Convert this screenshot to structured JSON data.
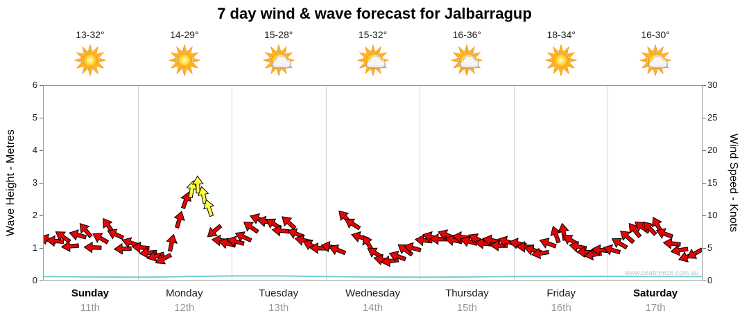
{
  "watermark": "www.seabreeze.com.au",
  "colors": {
    "arrow_red": "#e60505",
    "arrow_yellow": "#ffff45",
    "arrow_outline": "#000000",
    "wave_line": "#6fd0d0",
    "grid": "#d2d2d2",
    "axis_border": "#9a9a9a",
    "date_gray": "#979797"
  },
  "days": [
    {
      "name": "Sunday",
      "date": "11th",
      "temp": "13-32°",
      "icon": "sunny",
      "bold": true
    },
    {
      "name": "Monday",
      "date": "12th",
      "temp": "14-29°",
      "icon": "sunny",
      "bold": false
    },
    {
      "name": "Tuesday",
      "date": "13th",
      "temp": "15-28°",
      "icon": "partly-cloudy",
      "bold": false
    },
    {
      "name": "Wednesday",
      "date": "14th",
      "temp": "15-32°",
      "icon": "partly-cloudy",
      "bold": false
    },
    {
      "name": "Thursday",
      "date": "15th",
      "temp": "16-36°",
      "icon": "partly-cloudy",
      "bold": false
    },
    {
      "name": "Friday",
      "date": "16th",
      "temp": "18-34°",
      "icon": "sunny",
      "bold": false
    },
    {
      "name": "Saturday",
      "date": "17th",
      "temp": "16-30°",
      "icon": "partly-cloudy",
      "bold": true
    }
  ],
  "chart_data": {
    "type": "scatter",
    "title": "7 day wind & wave forecast for Jalbarragup",
    "x_axis": {
      "categories": [
        "Sunday 11th",
        "Monday 12th",
        "Tuesday 13th",
        "Wednesday 14th",
        "Thursday 15th",
        "Friday 16th",
        "Saturday 17th"
      ],
      "range_days": [
        0,
        7
      ],
      "grid": "vertical day separators"
    },
    "y_left": {
      "label": "Wave Height - Metres",
      "range": [
        0,
        6
      ],
      "ticks": [
        0,
        1,
        2,
        3,
        4,
        5,
        6
      ]
    },
    "y_right": {
      "label": "Wind Speed - Knots",
      "range": [
        0,
        30
      ],
      "ticks": [
        0,
        5,
        10,
        15,
        20,
        25,
        30
      ]
    },
    "legend": "none",
    "series": [
      {
        "name": "Wind speed & direction arrows",
        "type": "wind-arrows",
        "units": "knots (right axis)",
        "points_format": [
          "day_x_0_to_7",
          "knots",
          "direction_deg_cw_from_east",
          "color r=red y=yellow"
        ],
        "points": [
          [
            0.05,
            6.2,
            200,
            "r"
          ],
          [
            0.13,
            6.0,
            185,
            "r"
          ],
          [
            0.21,
            6.6,
            215,
            "r"
          ],
          [
            0.29,
            5.2,
            175,
            "r"
          ],
          [
            0.37,
            6.9,
            195,
            "r"
          ],
          [
            0.45,
            7.6,
            230,
            "r"
          ],
          [
            0.53,
            5.0,
            182,
            "r"
          ],
          [
            0.61,
            6.4,
            210,
            "r"
          ],
          [
            0.69,
            8.3,
            235,
            "r"
          ],
          [
            0.77,
            7.0,
            205,
            "r"
          ],
          [
            0.85,
            4.8,
            178,
            "r"
          ],
          [
            0.93,
            5.7,
            198,
            "r"
          ],
          [
            1.04,
            5.0,
            185,
            "r"
          ],
          [
            1.12,
            4.2,
            175,
            "r"
          ],
          [
            1.2,
            3.7,
            165,
            "r"
          ],
          [
            1.28,
            3.3,
            152,
            "r"
          ],
          [
            1.36,
            5.6,
            282,
            "r"
          ],
          [
            1.44,
            9.2,
            286,
            "r"
          ],
          [
            1.51,
            12.2,
            290,
            "r"
          ],
          [
            1.575,
            13.9,
            280,
            "y"
          ],
          [
            1.64,
            14.6,
            268,
            "y"
          ],
          [
            1.7,
            13.0,
            258,
            "y"
          ],
          [
            1.76,
            11.0,
            252,
            "y"
          ],
          [
            1.82,
            7.6,
            140,
            "r"
          ],
          [
            1.89,
            6.1,
            185,
            "r"
          ],
          [
            1.96,
            5.6,
            195,
            "r"
          ],
          [
            2.05,
            5.9,
            195,
            "r"
          ],
          [
            2.13,
            6.6,
            205,
            "r"
          ],
          [
            2.21,
            8.1,
            215,
            "r"
          ],
          [
            2.29,
            9.4,
            200,
            "r"
          ],
          [
            2.37,
            9.0,
            190,
            "r"
          ],
          [
            2.45,
            8.6,
            212,
            "r"
          ],
          [
            2.53,
            7.6,
            186,
            "r"
          ],
          [
            2.61,
            8.8,
            222,
            "r"
          ],
          [
            2.69,
            7.1,
            202,
            "r"
          ],
          [
            2.77,
            6.1,
            192,
            "r"
          ],
          [
            2.85,
            5.3,
            206,
            "r"
          ],
          [
            2.93,
            4.9,
            182,
            "r"
          ],
          [
            3.05,
            5.1,
            190,
            "r"
          ],
          [
            3.13,
            4.6,
            202,
            "r"
          ],
          [
            3.21,
            9.6,
            226,
            "r"
          ],
          [
            3.29,
            8.6,
            212,
            "r"
          ],
          [
            3.37,
            6.6,
            196,
            "r"
          ],
          [
            3.45,
            5.6,
            240,
            "r"
          ],
          [
            3.53,
            4.1,
            212,
            "r"
          ],
          [
            3.61,
            3.1,
            192,
            "r"
          ],
          [
            3.69,
            2.9,
            172,
            "r"
          ],
          [
            3.77,
            3.6,
            200,
            "r"
          ],
          [
            3.85,
            4.6,
            216,
            "r"
          ],
          [
            3.93,
            4.9,
            196,
            "r"
          ],
          [
            4.05,
            6.1,
            186,
            "r"
          ],
          [
            4.13,
            6.6,
            196,
            "r"
          ],
          [
            4.21,
            6.3,
            181,
            "r"
          ],
          [
            4.29,
            6.9,
            201,
            "r"
          ],
          [
            4.37,
            6.1,
            191,
            "r"
          ],
          [
            4.45,
            6.6,
            186,
            "r"
          ],
          [
            4.53,
            5.9,
            196,
            "r"
          ],
          [
            4.61,
            6.3,
            206,
            "r"
          ],
          [
            4.69,
            5.6,
            186,
            "r"
          ],
          [
            4.77,
            6.1,
            191,
            "r"
          ],
          [
            4.85,
            5.3,
            181,
            "r"
          ],
          [
            4.93,
            5.9,
            196,
            "r"
          ],
          [
            5.05,
            5.6,
            191,
            "r"
          ],
          [
            5.13,
            5.1,
            181,
            "r"
          ],
          [
            5.21,
            4.6,
            196,
            "r"
          ],
          [
            5.29,
            4.1,
            171,
            "r"
          ],
          [
            5.37,
            5.6,
            201,
            "r"
          ],
          [
            5.45,
            6.9,
            251,
            "r"
          ],
          [
            5.53,
            7.3,
            261,
            "r"
          ],
          [
            5.61,
            6.1,
            211,
            "r"
          ],
          [
            5.69,
            5.1,
            191,
            "r"
          ],
          [
            5.77,
            4.3,
            181,
            "r"
          ],
          [
            5.85,
            3.9,
            171,
            "r"
          ],
          [
            5.93,
            4.6,
            186,
            "r"
          ],
          [
            6.05,
            4.6,
            196,
            "r"
          ],
          [
            6.13,
            5.6,
            211,
            "r"
          ],
          [
            6.21,
            6.6,
            221,
            "r"
          ],
          [
            6.29,
            7.6,
            231,
            "r"
          ],
          [
            6.37,
            8.1,
            216,
            "r"
          ],
          [
            6.45,
            7.9,
            226,
            "r"
          ],
          [
            6.53,
            8.4,
            241,
            "r"
          ],
          [
            6.61,
            7.1,
            201,
            "r"
          ],
          [
            6.69,
            5.6,
            186,
            "r"
          ],
          [
            6.77,
            4.6,
            171,
            "r"
          ],
          [
            6.85,
            3.6,
            161,
            "r"
          ],
          [
            6.93,
            4.1,
            151,
            "r"
          ]
        ]
      },
      {
        "name": "Wave height",
        "type": "line",
        "units": "metres (left axis)",
        "color": "#6fd0d0",
        "x": [
          0,
          0.5,
          1,
          1.5,
          2,
          2.5,
          3,
          3.5,
          4,
          4.5,
          5,
          5.5,
          6,
          6.5,
          7
        ],
        "y": [
          0.1,
          0.09,
          0.08,
          0.1,
          0.12,
          0.12,
          0.1,
          0.09,
          0.08,
          0.09,
          0.1,
          0.1,
          0.11,
          0.1,
          0.1
        ]
      }
    ]
  }
}
